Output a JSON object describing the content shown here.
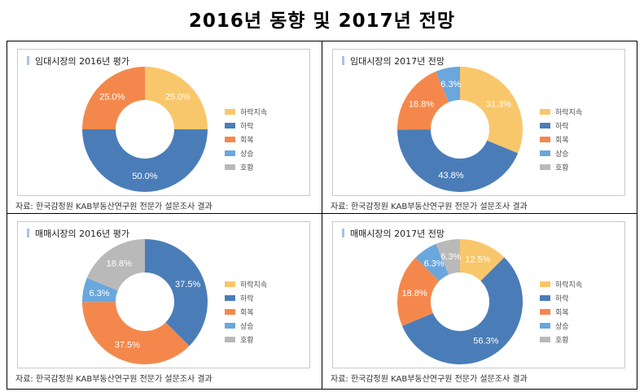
{
  "title": "2016년 동향 및 2017년 전망",
  "source": "자료: 한국감정원 KAB부동산연구원 전문가 설문조사 결과",
  "chart_data": [
    {
      "type": "pie",
      "donut": true,
      "title": "임대시장의 2016년 평가",
      "categories": [
        "하락지속",
        "하락",
        "회복",
        "상승",
        "호황"
      ],
      "values": [
        25.0,
        50.0,
        25.0,
        0,
        0
      ],
      "labels": [
        "25.0%",
        "50.0%",
        "25.0%",
        "",
        ""
      ],
      "legend": "right"
    },
    {
      "type": "pie",
      "donut": true,
      "title": "임대시장의 2017년 전망",
      "categories": [
        "하락지속",
        "하락",
        "회복",
        "상승",
        "호황"
      ],
      "values": [
        31.3,
        43.8,
        18.8,
        6.3,
        0
      ],
      "labels": [
        "31.3%",
        "43.8%",
        "18.8%",
        "6.3%",
        ""
      ],
      "legend": "right"
    },
    {
      "type": "pie",
      "donut": true,
      "title": "매매시장의 2016년 평가",
      "categories": [
        "하락지속",
        "하락",
        "회복",
        "상승",
        "호황"
      ],
      "values": [
        0,
        37.5,
        37.5,
        6.3,
        18.8
      ],
      "labels": [
        "",
        "37.5%",
        "37.5%",
        "6.3%",
        "18.8%"
      ],
      "legend": "right"
    },
    {
      "type": "pie",
      "donut": true,
      "title": "매매시장의 2017년 전망",
      "categories": [
        "하락지속",
        "하락",
        "회복",
        "상승",
        "호황"
      ],
      "values": [
        12.5,
        56.3,
        18.8,
        6.3,
        6.3
      ],
      "labels": [
        "12.5%",
        "56.3%",
        "18.8%",
        "6.3%",
        "6.3%"
      ],
      "legend": "right"
    }
  ],
  "colors": [
    "#f9c76b",
    "#4a7db8",
    "#f4884c",
    "#6aa7dc",
    "#b9b9b9"
  ]
}
